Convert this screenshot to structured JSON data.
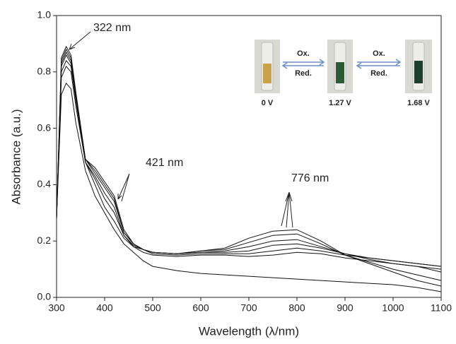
{
  "chart_data": {
    "type": "line",
    "xlabel": "Wavelength (λ/nm)",
    "ylabel": "Absorbance (a.u.)",
    "x": [
      300,
      310,
      320,
      330,
      340,
      360,
      380,
      400,
      420,
      440,
      460,
      480,
      500,
      550,
      600,
      650,
      700,
      750,
      800,
      850,
      900,
      950,
      1000,
      1050,
      1100
    ],
    "series": [
      {
        "color": "#111111",
        "values": [
          0.28,
          0.72,
          0.76,
          0.74,
          0.62,
          0.45,
          0.36,
          0.3,
          0.24,
          0.19,
          0.16,
          0.13,
          0.11,
          0.095,
          0.085,
          0.08,
          0.075,
          0.07,
          0.065,
          0.06,
          0.055,
          0.05,
          0.045,
          0.035,
          0.02
        ]
      },
      {
        "color": "#111111",
        "values": [
          0.28,
          0.78,
          0.82,
          0.8,
          0.68,
          0.48,
          0.4,
          0.32,
          0.27,
          0.21,
          0.18,
          0.16,
          0.15,
          0.145,
          0.15,
          0.15,
          0.145,
          0.15,
          0.16,
          0.155,
          0.14,
          0.13,
          0.12,
          0.11,
          0.1
        ]
      },
      {
        "color": "#111111",
        "values": [
          0.28,
          0.8,
          0.84,
          0.82,
          0.7,
          0.48,
          0.42,
          0.35,
          0.3,
          0.22,
          0.18,
          0.17,
          0.155,
          0.15,
          0.155,
          0.155,
          0.155,
          0.165,
          0.175,
          0.165,
          0.15,
          0.14,
          0.13,
          0.12,
          0.11
        ]
      },
      {
        "color": "#111111",
        "values": [
          0.28,
          0.82,
          0.86,
          0.83,
          0.71,
          0.48,
          0.43,
          0.37,
          0.32,
          0.22,
          0.185,
          0.17,
          0.16,
          0.155,
          0.16,
          0.16,
          0.165,
          0.185,
          0.19,
          0.175,
          0.155,
          0.14,
          0.13,
          0.12,
          0.11
        ]
      },
      {
        "color": "#111111",
        "values": [
          0.28,
          0.83,
          0.87,
          0.84,
          0.72,
          0.49,
          0.44,
          0.39,
          0.34,
          0.23,
          0.19,
          0.17,
          0.16,
          0.155,
          0.16,
          0.165,
          0.18,
          0.2,
          0.205,
          0.18,
          0.155,
          0.135,
          0.12,
          0.11,
          0.09
        ]
      },
      {
        "color": "#111111",
        "values": [
          0.28,
          0.84,
          0.88,
          0.85,
          0.72,
          0.49,
          0.45,
          0.4,
          0.35,
          0.23,
          0.19,
          0.17,
          0.16,
          0.155,
          0.165,
          0.17,
          0.195,
          0.22,
          0.225,
          0.19,
          0.15,
          0.125,
          0.1,
          0.08,
          0.06
        ]
      },
      {
        "color": "#111111",
        "values": [
          0.28,
          0.85,
          0.89,
          0.86,
          0.73,
          0.49,
          0.46,
          0.41,
          0.36,
          0.24,
          0.19,
          0.17,
          0.16,
          0.155,
          0.165,
          0.175,
          0.21,
          0.235,
          0.24,
          0.2,
          0.15,
          0.12,
          0.09,
          0.06,
          0.04
        ]
      }
    ],
    "xlim": [
      300,
      1100
    ],
    "xticks": [
      300,
      400,
      500,
      600,
      700,
      800,
      900,
      1000,
      1100
    ],
    "ylim": [
      0,
      1
    ],
    "yticks": [
      {
        "value": 0,
        "label": "0.0"
      },
      0.2,
      0.4,
      0.6,
      0.8,
      {
        "value": 1,
        "label": "1.0"
      }
    ],
    "annotations": [
      "322 nm",
      "421 nm",
      "776 nm"
    ],
    "inset": {
      "potentials": [
        "0 V",
        "1.27 V",
        "1.68 V"
      ],
      "arrow_labels": [
        "Ox.",
        "Red."
      ]
    }
  }
}
